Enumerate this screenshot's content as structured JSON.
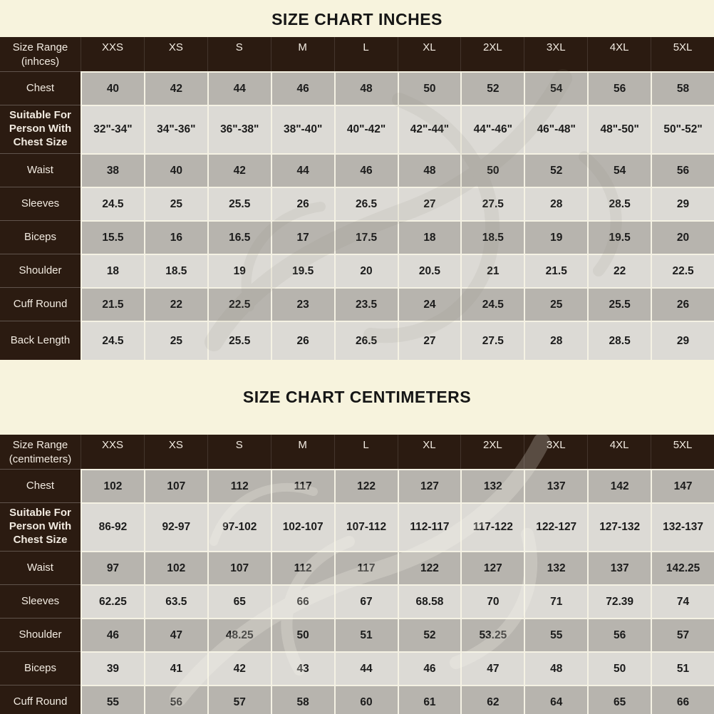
{
  "colors": {
    "background": "#f7f3dd",
    "header_brown": "#2b1b11",
    "row_light_gray": "#dcdad5",
    "row_medium_gray": "#b7b4ae",
    "header_text": "#f2ebe1",
    "value_text": "#1c1c1c"
  },
  "inches": {
    "title": "SIZE CHART INCHES",
    "corner_line1": "Size Range",
    "corner_line2": "(inhces)",
    "columns": [
      "XXS",
      "XS",
      "S",
      "M",
      "L",
      "XL",
      "2XL",
      "3XL",
      "4XL",
      "5XL"
    ],
    "rows": [
      {
        "label": "Chest",
        "shade": "medium",
        "values": [
          "40",
          "42",
          "44",
          "46",
          "48",
          "50",
          "52",
          "54",
          "56",
          "58"
        ]
      },
      {
        "label": "Suitable For Person With Chest Size",
        "shade": "light",
        "values": [
          "32\"-34\"",
          "34\"-36\"",
          "36\"-38\"",
          "38\"-40\"",
          "40\"-42\"",
          "42\"-44\"",
          "44\"-46\"",
          "46\"-48\"",
          "48\"-50\"",
          "50\"-52\""
        ]
      },
      {
        "label": "Waist",
        "shade": "medium",
        "values": [
          "38",
          "40",
          "42",
          "44",
          "46",
          "48",
          "50",
          "52",
          "54",
          "56"
        ]
      },
      {
        "label": "Sleeves",
        "shade": "light",
        "values": [
          "24.5",
          "25",
          "25.5",
          "26",
          "26.5",
          "27",
          "27.5",
          "28",
          "28.5",
          "29"
        ]
      },
      {
        "label": "Biceps",
        "shade": "medium",
        "values": [
          "15.5",
          "16",
          "16.5",
          "17",
          "17.5",
          "18",
          "18.5",
          "19",
          "19.5",
          "20"
        ]
      },
      {
        "label": "Shoulder",
        "shade": "light",
        "values": [
          "18",
          "18.5",
          "19",
          "19.5",
          "20",
          "20.5",
          "21",
          "21.5",
          "22",
          "22.5"
        ]
      },
      {
        "label": "Cuff Round",
        "shade": "medium",
        "values": [
          "21.5",
          "22",
          "22.5",
          "23",
          "23.5",
          "24",
          "24.5",
          "25",
          "25.5",
          "26"
        ]
      },
      {
        "label": "Back Length",
        "shade": "light",
        "values": [
          "24.5",
          "25",
          "25.5",
          "26",
          "26.5",
          "27",
          "27.5",
          "28",
          "28.5",
          "29"
        ]
      }
    ]
  },
  "centimeters": {
    "title": "SIZE CHART CENTIMETERS",
    "corner_line1": "Size Range",
    "corner_line2": "(centimeters)",
    "columns": [
      "XXS",
      "XS",
      "S",
      "M",
      "L",
      "XL",
      "2XL",
      "3XL",
      "4XL",
      "5XL"
    ],
    "rows": [
      {
        "label": "Chest",
        "shade": "medium",
        "values": [
          "102",
          "107",
          "112",
          "117",
          "122",
          "127",
          "132",
          "137",
          "142",
          "147"
        ]
      },
      {
        "label": "Suitable For Person With Chest Size",
        "shade": "light",
        "values": [
          "86-92",
          "92-97",
          "97-102",
          "102-107",
          "107-112",
          "112-117",
          "117-122",
          "122-127",
          "127-132",
          "132-137"
        ]
      },
      {
        "label": "Waist",
        "shade": "medium",
        "values": [
          "97",
          "102",
          "107",
          "112",
          "117",
          "122",
          "127",
          "132",
          "137",
          "142.25"
        ]
      },
      {
        "label": "Sleeves",
        "shade": "light",
        "values": [
          "62.25",
          "63.5",
          "65",
          "66",
          "67",
          "68.58",
          "70",
          "71",
          "72.39",
          "74"
        ]
      },
      {
        "label": "Shoulder",
        "shade": "medium",
        "values": [
          "46",
          "47",
          "48.25",
          "50",
          "51",
          "52",
          "53.25",
          "55",
          "56",
          "57"
        ]
      },
      {
        "label": "Biceps",
        "shade": "light",
        "values": [
          "39",
          "41",
          "42",
          "43",
          "44",
          "46",
          "47",
          "48",
          "50",
          "51"
        ]
      },
      {
        "label": "Cuff Round",
        "shade": "medium",
        "values": [
          "55",
          "56",
          "57",
          "58",
          "60",
          "61",
          "62",
          "64",
          "65",
          "66"
        ]
      }
    ]
  }
}
